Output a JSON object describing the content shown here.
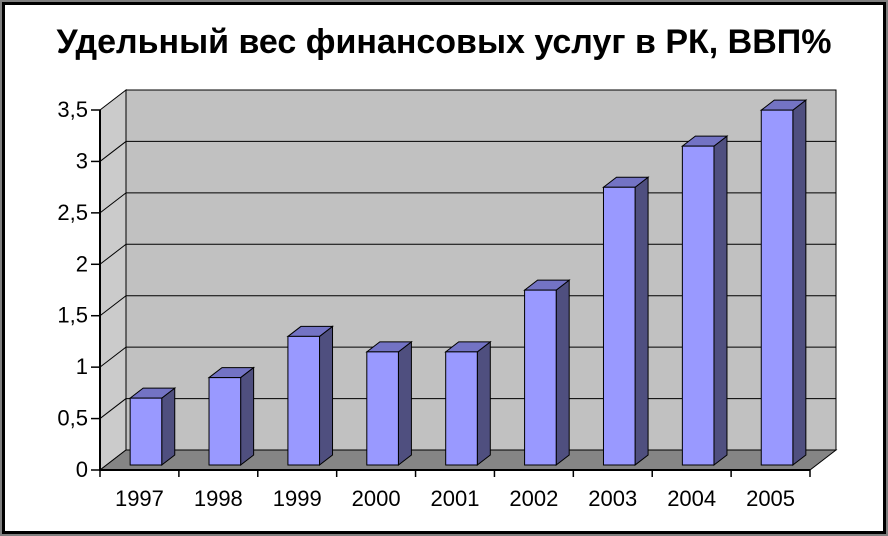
{
  "chart_data": {
    "type": "bar",
    "variant": "3d-column",
    "title": "Удельный вес финансовых услуг в РК,  ВВП%",
    "categories": [
      "1997",
      "1998",
      "1999",
      "2000",
      "2001",
      "2002",
      "2003",
      "2004",
      "2005"
    ],
    "values": [
      0.65,
      0.85,
      1.25,
      1.1,
      1.1,
      1.7,
      2.7,
      3.1,
      3.45
    ],
    "xlabel": "",
    "ylabel": "",
    "ylim": [
      0,
      3.5
    ],
    "ytick_step": 0.5,
    "ytick_labels": [
      "0",
      "0,5",
      "1",
      "1,5",
      "2",
      "2,5",
      "3",
      "3,5"
    ],
    "grid": true,
    "legend": false,
    "colors": {
      "bar_front": "#9999FF",
      "bar_side": "#4F4F7F",
      "bar_top": "#7373C4",
      "back_wall": "#C1C1C1",
      "side_wall": "#CBCBCB",
      "floor": "#858585",
      "outline": "#000000",
      "axis": "#000000",
      "background": "#FFFFFF",
      "frame_border": "#000000",
      "frame_outer": "#7F7F7F",
      "text": "#000000"
    }
  }
}
